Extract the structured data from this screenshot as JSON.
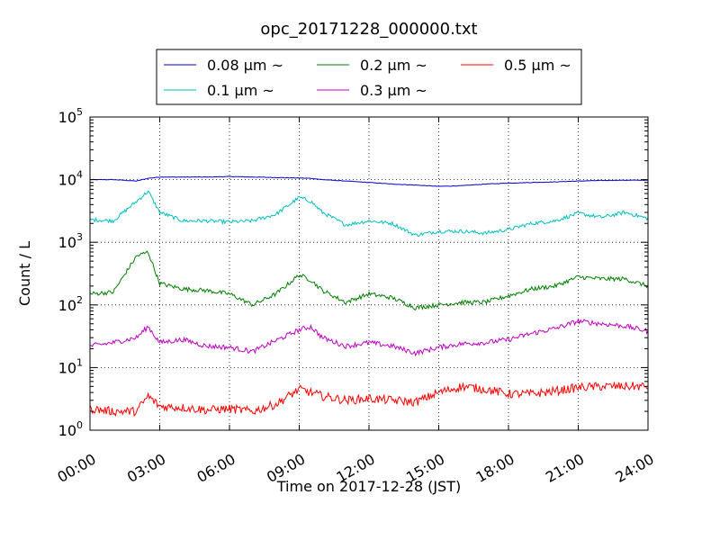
{
  "chart_data": {
    "type": "line",
    "title": "opc_20171228_000000.txt",
    "xlabel": "Time on 2017-12-28 (JST)",
    "ylabel": "Count / L",
    "yscale": "log",
    "ylim": [
      1,
      100000
    ],
    "xlim": [
      "00:00",
      "24:00"
    ],
    "grid": true,
    "legend_position": "top",
    "x_ticks": [
      "00:00",
      "03:00",
      "06:00",
      "09:00",
      "12:00",
      "15:00",
      "18:00",
      "21:00",
      "24:00"
    ],
    "y_ticks": [
      {
        "value": 1,
        "base": "10",
        "exp": "0"
      },
      {
        "value": 10,
        "base": "10",
        "exp": "1"
      },
      {
        "value": 100,
        "base": "10",
        "exp": "2"
      },
      {
        "value": 1000,
        "base": "10",
        "exp": "3"
      },
      {
        "value": 10000,
        "base": "10",
        "exp": "4"
      },
      {
        "value": 100000,
        "base": "10",
        "exp": "5"
      }
    ],
    "x": [
      "00:00",
      "01:00",
      "02:00",
      "02:30",
      "03:00",
      "04:00",
      "05:00",
      "06:00",
      "07:00",
      "08:00",
      "09:00",
      "09:30",
      "10:00",
      "11:00",
      "12:00",
      "13:00",
      "14:00",
      "15:00",
      "16:00",
      "17:00",
      "18:00",
      "19:00",
      "20:00",
      "21:00",
      "22:00",
      "23:00",
      "24:00"
    ],
    "series": [
      {
        "name": "0.08 μm ~",
        "color": "#0000cc",
        "values": [
          10000,
          10000,
          9500,
          10500,
          11000,
          11000,
          11000,
          11200,
          11000,
          10800,
          10600,
          10500,
          10000,
          9500,
          9000,
          8500,
          8200,
          7800,
          8000,
          8500,
          8800,
          9000,
          9200,
          9500,
          9700,
          9800,
          9800
        ]
      },
      {
        "name": "0.1 μm ~",
        "color": "#00bfbf",
        "values": [
          2300,
          2200,
          4500,
          6500,
          3000,
          2200,
          2200,
          2100,
          2200,
          2800,
          5200,
          4500,
          3000,
          1900,
          2200,
          2000,
          1300,
          1500,
          1500,
          1400,
          1600,
          2000,
          2200,
          2900,
          2500,
          3000,
          2400
        ]
      },
      {
        "name": "0.2 μm ~",
        "color": "#007f00",
        "values": [
          150,
          160,
          600,
          700,
          220,
          180,
          170,
          150,
          100,
          150,
          300,
          250,
          170,
          110,
          150,
          130,
          90,
          100,
          110,
          110,
          140,
          180,
          200,
          280,
          260,
          260,
          200
        ]
      },
      {
        "name": "0.3 μm ~",
        "color": "#bf00bf",
        "values": [
          22,
          25,
          30,
          45,
          25,
          28,
          22,
          21,
          18,
          27,
          40,
          45,
          30,
          22,
          25,
          22,
          17,
          21,
          24,
          25,
          28,
          35,
          42,
          55,
          50,
          46,
          38
        ]
      },
      {
        "name": "0.5 μm ~",
        "color": "#ff0000",
        "values": [
          2.2,
          2.0,
          2.0,
          3.5,
          2.4,
          2.3,
          2.1,
          2.2,
          2.0,
          2.6,
          4.5,
          4.0,
          3.5,
          3.0,
          3.2,
          3.0,
          2.8,
          4.0,
          5.0,
          4.5,
          3.8,
          3.8,
          4.2,
          4.8,
          5.0,
          5.0,
          5.0
        ]
      }
    ]
  }
}
